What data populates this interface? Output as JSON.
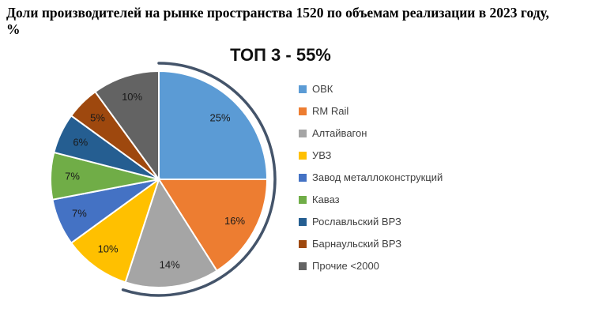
{
  "page": {
    "title_line1": "Доли производителей на рынке пространства 1520 по объемам реализации в 2023 году,",
    "title_line2": "%"
  },
  "chart_data": {
    "type": "pie",
    "title": "ТОП 3 - 55%",
    "labels": [
      "ОВК",
      "RM Rail",
      "Алтайвагон",
      "УВЗ",
      "Завод металлоконструкций",
      "Каваз",
      "Рославльский ВРЗ",
      "Барнаульский ВРЗ",
      "Прочие <2000"
    ],
    "values": [
      25,
      16,
      14,
      10,
      7,
      7,
      6,
      5,
      10
    ],
    "data_labels": [
      "25%",
      "16%",
      "14%",
      "10%",
      "7%",
      "7%",
      "6%",
      "5%",
      "10%"
    ],
    "unit": "%",
    "colors": [
      "#5B9BD5",
      "#ED7D31",
      "#A5A5A5",
      "#FFC000",
      "#4472C4",
      "#70AD47",
      "#255E91",
      "#9E480E",
      "#636363"
    ],
    "start_angle_deg": -90,
    "direction": "clockwise",
    "legend_position": "right",
    "slice_border_color": "#FFFFFF",
    "label_text_color": "#1a1a1a",
    "annotation": {
      "label": "ТОП 3 - 55%",
      "arc_covers_percent": 55,
      "arc_color": "#44546A"
    }
  }
}
